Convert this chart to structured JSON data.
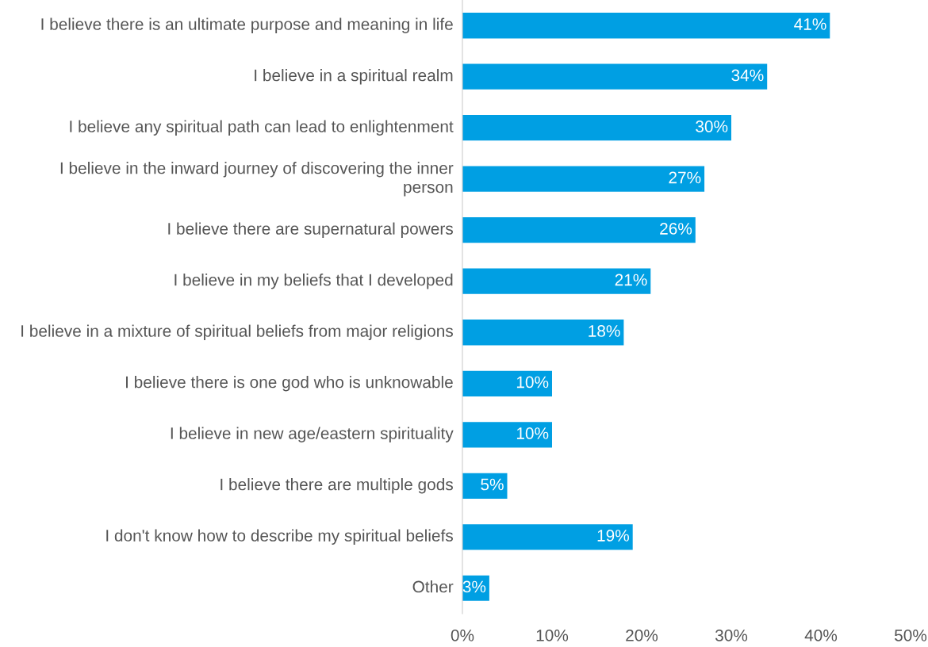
{
  "chart_data": {
    "type": "bar",
    "orientation": "horizontal",
    "categories": [
      "I believe there is an ultimate purpose and meaning in life",
      "I believe in a spiritual realm",
      "I believe any spiritual path can lead to enlightenment",
      "I believe in the inward journey of discovering the inner person",
      "I believe there are supernatural powers",
      "I believe in my beliefs that I developed",
      "I believe in a mixture of spiritual beliefs from major religions",
      "I believe there is one god who is unknowable",
      "I believe in new age/eastern spirituality",
      "I believe there are multiple gods",
      "I don't know how to describe my spiritual beliefs",
      "Other"
    ],
    "values": [
      41,
      34,
      30,
      27,
      26,
      21,
      18,
      10,
      10,
      5,
      19,
      3
    ],
    "value_labels": [
      "41%",
      "34%",
      "30%",
      "27%",
      "26%",
      "21%",
      "18%",
      "10%",
      "10%",
      "5%",
      "19%",
      "3%"
    ],
    "color": "#009fe3",
    "xlim": [
      0,
      50
    ],
    "xticks": [
      {
        "value": 0,
        "label": "0%"
      },
      {
        "value": 10,
        "label": "10%"
      },
      {
        "value": 20,
        "label": "20%"
      },
      {
        "value": 30,
        "label": "30%"
      },
      {
        "value": 40,
        "label": "40%"
      },
      {
        "value": 50,
        "label": "50%"
      }
    ],
    "grid": false,
    "legend": false
  }
}
